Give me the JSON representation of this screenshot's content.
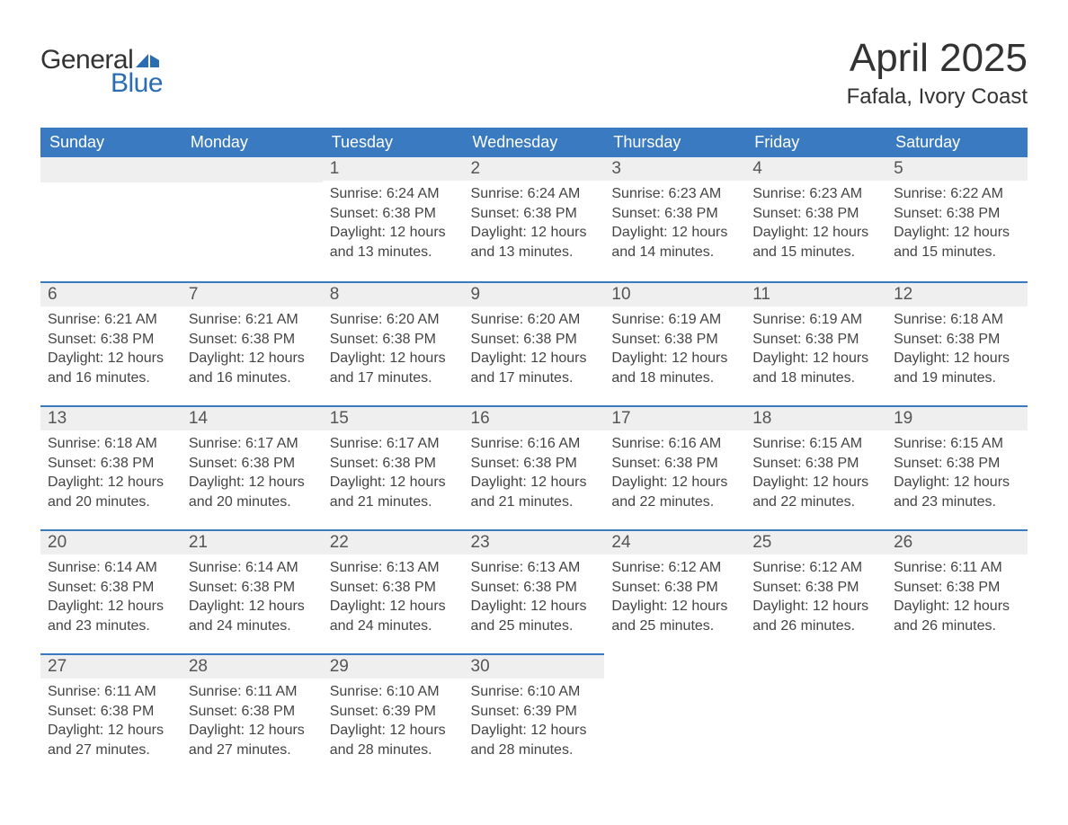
{
  "logo": {
    "text_general": "General",
    "text_blue": "Blue",
    "icon_color": "#2a6db3"
  },
  "title": "April 2025",
  "location": "Fafala, Ivory Coast",
  "colors": {
    "header_bg": "#3a7ac0",
    "header_text": "#ffffff",
    "daynum_bg": "#efefef",
    "daynum_border": "#3a7ac0",
    "body_text": "#444444",
    "title_text": "#333333"
  },
  "weekdays": [
    "Sunday",
    "Monday",
    "Tuesday",
    "Wednesday",
    "Thursday",
    "Friday",
    "Saturday"
  ],
  "weeks": [
    [
      {
        "day": "",
        "sunrise": "",
        "sunset": "",
        "daylight1": "",
        "daylight2": ""
      },
      {
        "day": "",
        "sunrise": "",
        "sunset": "",
        "daylight1": "",
        "daylight2": ""
      },
      {
        "day": "1",
        "sunrise": "Sunrise: 6:24 AM",
        "sunset": "Sunset: 6:38 PM",
        "daylight1": "Daylight: 12 hours",
        "daylight2": "and 13 minutes."
      },
      {
        "day": "2",
        "sunrise": "Sunrise: 6:24 AM",
        "sunset": "Sunset: 6:38 PM",
        "daylight1": "Daylight: 12 hours",
        "daylight2": "and 13 minutes."
      },
      {
        "day": "3",
        "sunrise": "Sunrise: 6:23 AM",
        "sunset": "Sunset: 6:38 PM",
        "daylight1": "Daylight: 12 hours",
        "daylight2": "and 14 minutes."
      },
      {
        "day": "4",
        "sunrise": "Sunrise: 6:23 AM",
        "sunset": "Sunset: 6:38 PM",
        "daylight1": "Daylight: 12 hours",
        "daylight2": "and 15 minutes."
      },
      {
        "day": "5",
        "sunrise": "Sunrise: 6:22 AM",
        "sunset": "Sunset: 6:38 PM",
        "daylight1": "Daylight: 12 hours",
        "daylight2": "and 15 minutes."
      }
    ],
    [
      {
        "day": "6",
        "sunrise": "Sunrise: 6:21 AM",
        "sunset": "Sunset: 6:38 PM",
        "daylight1": "Daylight: 12 hours",
        "daylight2": "and 16 minutes."
      },
      {
        "day": "7",
        "sunrise": "Sunrise: 6:21 AM",
        "sunset": "Sunset: 6:38 PM",
        "daylight1": "Daylight: 12 hours",
        "daylight2": "and 16 minutes."
      },
      {
        "day": "8",
        "sunrise": "Sunrise: 6:20 AM",
        "sunset": "Sunset: 6:38 PM",
        "daylight1": "Daylight: 12 hours",
        "daylight2": "and 17 minutes."
      },
      {
        "day": "9",
        "sunrise": "Sunrise: 6:20 AM",
        "sunset": "Sunset: 6:38 PM",
        "daylight1": "Daylight: 12 hours",
        "daylight2": "and 17 minutes."
      },
      {
        "day": "10",
        "sunrise": "Sunrise: 6:19 AM",
        "sunset": "Sunset: 6:38 PM",
        "daylight1": "Daylight: 12 hours",
        "daylight2": "and 18 minutes."
      },
      {
        "day": "11",
        "sunrise": "Sunrise: 6:19 AM",
        "sunset": "Sunset: 6:38 PM",
        "daylight1": "Daylight: 12 hours",
        "daylight2": "and 18 minutes."
      },
      {
        "day": "12",
        "sunrise": "Sunrise: 6:18 AM",
        "sunset": "Sunset: 6:38 PM",
        "daylight1": "Daylight: 12 hours",
        "daylight2": "and 19 minutes."
      }
    ],
    [
      {
        "day": "13",
        "sunrise": "Sunrise: 6:18 AM",
        "sunset": "Sunset: 6:38 PM",
        "daylight1": "Daylight: 12 hours",
        "daylight2": "and 20 minutes."
      },
      {
        "day": "14",
        "sunrise": "Sunrise: 6:17 AM",
        "sunset": "Sunset: 6:38 PM",
        "daylight1": "Daylight: 12 hours",
        "daylight2": "and 20 minutes."
      },
      {
        "day": "15",
        "sunrise": "Sunrise: 6:17 AM",
        "sunset": "Sunset: 6:38 PM",
        "daylight1": "Daylight: 12 hours",
        "daylight2": "and 21 minutes."
      },
      {
        "day": "16",
        "sunrise": "Sunrise: 6:16 AM",
        "sunset": "Sunset: 6:38 PM",
        "daylight1": "Daylight: 12 hours",
        "daylight2": "and 21 minutes."
      },
      {
        "day": "17",
        "sunrise": "Sunrise: 6:16 AM",
        "sunset": "Sunset: 6:38 PM",
        "daylight1": "Daylight: 12 hours",
        "daylight2": "and 22 minutes."
      },
      {
        "day": "18",
        "sunrise": "Sunrise: 6:15 AM",
        "sunset": "Sunset: 6:38 PM",
        "daylight1": "Daylight: 12 hours",
        "daylight2": "and 22 minutes."
      },
      {
        "day": "19",
        "sunrise": "Sunrise: 6:15 AM",
        "sunset": "Sunset: 6:38 PM",
        "daylight1": "Daylight: 12 hours",
        "daylight2": "and 23 minutes."
      }
    ],
    [
      {
        "day": "20",
        "sunrise": "Sunrise: 6:14 AM",
        "sunset": "Sunset: 6:38 PM",
        "daylight1": "Daylight: 12 hours",
        "daylight2": "and 23 minutes."
      },
      {
        "day": "21",
        "sunrise": "Sunrise: 6:14 AM",
        "sunset": "Sunset: 6:38 PM",
        "daylight1": "Daylight: 12 hours",
        "daylight2": "and 24 minutes."
      },
      {
        "day": "22",
        "sunrise": "Sunrise: 6:13 AM",
        "sunset": "Sunset: 6:38 PM",
        "daylight1": "Daylight: 12 hours",
        "daylight2": "and 24 minutes."
      },
      {
        "day": "23",
        "sunrise": "Sunrise: 6:13 AM",
        "sunset": "Sunset: 6:38 PM",
        "daylight1": "Daylight: 12 hours",
        "daylight2": "and 25 minutes."
      },
      {
        "day": "24",
        "sunrise": "Sunrise: 6:12 AM",
        "sunset": "Sunset: 6:38 PM",
        "daylight1": "Daylight: 12 hours",
        "daylight2": "and 25 minutes."
      },
      {
        "day": "25",
        "sunrise": "Sunrise: 6:12 AM",
        "sunset": "Sunset: 6:38 PM",
        "daylight1": "Daylight: 12 hours",
        "daylight2": "and 26 minutes."
      },
      {
        "day": "26",
        "sunrise": "Sunrise: 6:11 AM",
        "sunset": "Sunset: 6:38 PM",
        "daylight1": "Daylight: 12 hours",
        "daylight2": "and 26 minutes."
      }
    ],
    [
      {
        "day": "27",
        "sunrise": "Sunrise: 6:11 AM",
        "sunset": "Sunset: 6:38 PM",
        "daylight1": "Daylight: 12 hours",
        "daylight2": "and 27 minutes."
      },
      {
        "day": "28",
        "sunrise": "Sunrise: 6:11 AM",
        "sunset": "Sunset: 6:38 PM",
        "daylight1": "Daylight: 12 hours",
        "daylight2": "and 27 minutes."
      },
      {
        "day": "29",
        "sunrise": "Sunrise: 6:10 AM",
        "sunset": "Sunset: 6:39 PM",
        "daylight1": "Daylight: 12 hours",
        "daylight2": "and 28 minutes."
      },
      {
        "day": "30",
        "sunrise": "Sunrise: 6:10 AM",
        "sunset": "Sunset: 6:39 PM",
        "daylight1": "Daylight: 12 hours",
        "daylight2": "and 28 minutes."
      },
      {
        "day": "",
        "sunrise": "",
        "sunset": "",
        "daylight1": "",
        "daylight2": ""
      },
      {
        "day": "",
        "sunrise": "",
        "sunset": "",
        "daylight1": "",
        "daylight2": ""
      },
      {
        "day": "",
        "sunrise": "",
        "sunset": "",
        "daylight1": "",
        "daylight2": ""
      }
    ]
  ]
}
